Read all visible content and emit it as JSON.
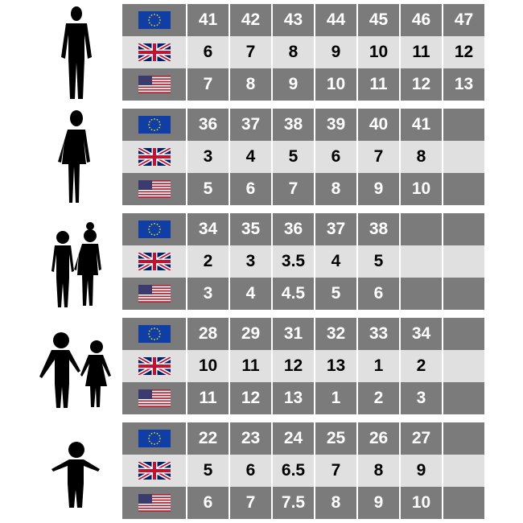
{
  "colors": {
    "dark_row": "#7b7b7b",
    "light_row": "#e0e0e0",
    "eu_blue": "#0f3ea5",
    "eu_star": "#ffd400"
  },
  "row_flags": [
    "eu-flag-icon",
    "uk-flag-icon",
    "us-flag-icon"
  ],
  "groups": [
    {
      "figure": "man-silhouette-icon",
      "eu": [
        "41",
        "42",
        "43",
        "44",
        "45",
        "46",
        "47"
      ],
      "uk": [
        "6",
        "7",
        "8",
        "9",
        "10",
        "11",
        "12"
      ],
      "us": [
        "7",
        "8",
        "9",
        "10",
        "11",
        "12",
        "13"
      ]
    },
    {
      "figure": "woman-silhouette-icon",
      "eu": [
        "36",
        "37",
        "38",
        "39",
        "40",
        "41",
        ""
      ],
      "uk": [
        "3",
        "4",
        "5",
        "6",
        "7",
        "8",
        ""
      ],
      "us": [
        "5",
        "6",
        "7",
        "8",
        "9",
        "10",
        ""
      ]
    },
    {
      "figure": "teens-silhouette-icon",
      "eu": [
        "34",
        "35",
        "36",
        "37",
        "38",
        "",
        ""
      ],
      "uk": [
        "2",
        "3",
        "3.5",
        "4",
        "5",
        "",
        ""
      ],
      "us": [
        "3",
        "4",
        "4.5",
        "5",
        "6",
        "",
        ""
      ]
    },
    {
      "figure": "children-silhouette-icon",
      "eu": [
        "28",
        "29",
        "31",
        "32",
        "33",
        "34",
        ""
      ],
      "uk": [
        "10",
        "11",
        "12",
        "13",
        "1",
        "2",
        ""
      ],
      "us": [
        "11",
        "12",
        "13",
        "1",
        "2",
        "3",
        ""
      ]
    },
    {
      "figure": "toddler-silhouette-icon",
      "eu": [
        "22",
        "23",
        "24",
        "25",
        "26",
        "27",
        ""
      ],
      "uk": [
        "5",
        "6",
        "6.5",
        "7",
        "8",
        "9",
        ""
      ],
      "us": [
        "6",
        "7",
        "7.5",
        "8",
        "9",
        "10",
        ""
      ]
    }
  ]
}
